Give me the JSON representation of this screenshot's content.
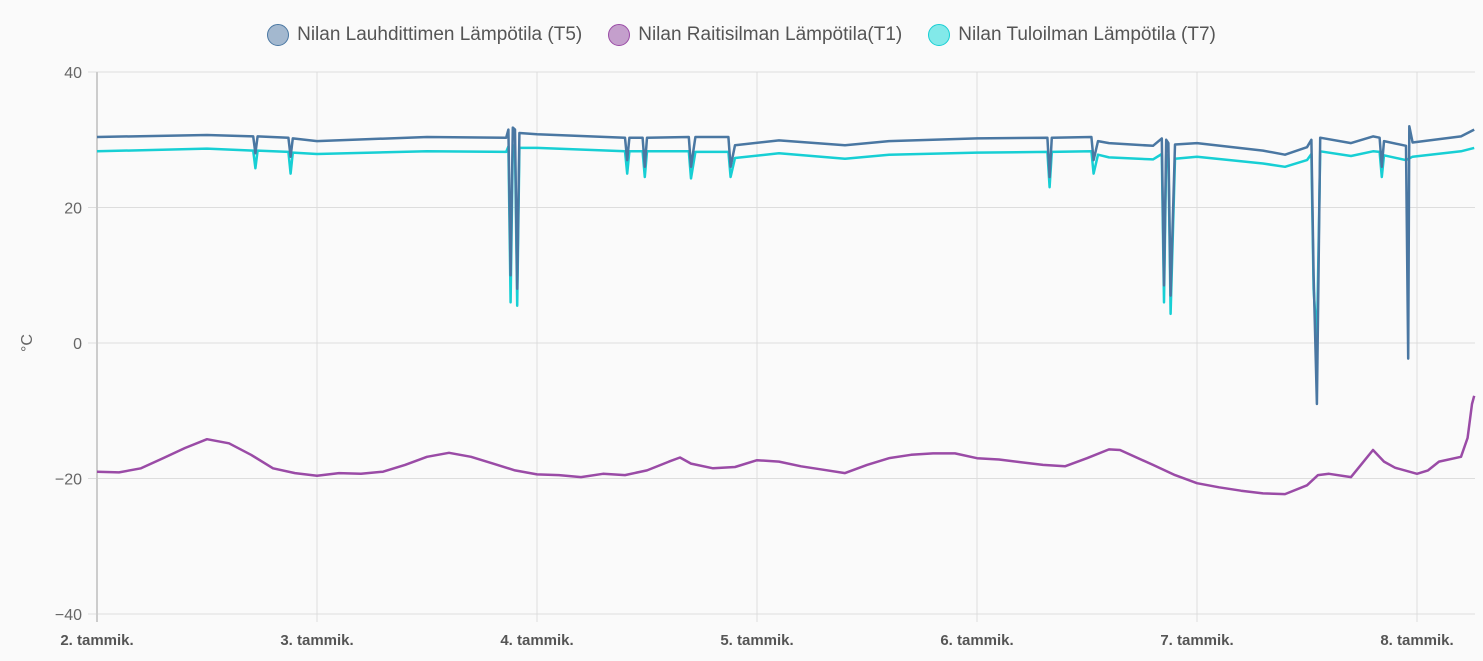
{
  "chart_data": {
    "type": "line",
    "title": "",
    "xlabel": "",
    "ylabel": "°C",
    "ylim": [
      -40,
      40
    ],
    "yticks": [
      "40",
      "20",
      "0",
      "−20",
      "−40"
    ],
    "ytick_values": [
      40,
      20,
      0,
      -20,
      -40
    ],
    "xlim": [
      2,
      8.26
    ],
    "xticks": [
      "2. tammik.",
      "3. tammik.",
      "4. tammik.",
      "5. tammik.",
      "6. tammik.",
      "7. tammik.",
      "8. tammik."
    ],
    "xtick_values": [
      2,
      3,
      4,
      5,
      6,
      7,
      8
    ],
    "x_unit": "day of January",
    "grid": true,
    "legend_position": "top",
    "series": [
      {
        "name": "Nilan Lauhdittimen Lämpötila (T5)",
        "color": "#4a77a2",
        "legend_fill": "#a3b8cf",
        "points": [
          [
            2.0,
            30.4
          ],
          [
            2.5,
            30.7
          ],
          [
            2.71,
            30.5
          ],
          [
            2.72,
            28
          ],
          [
            2.73,
            30.5
          ],
          [
            2.87,
            30.3
          ],
          [
            2.88,
            27.5
          ],
          [
            2.89,
            30.2
          ],
          [
            3.0,
            29.8
          ],
          [
            3.5,
            30.4
          ],
          [
            3.86,
            30.3
          ],
          [
            3.87,
            31.5
          ],
          [
            3.88,
            10
          ],
          [
            3.89,
            31.8
          ],
          [
            3.9,
            31.5
          ],
          [
            3.91,
            8
          ],
          [
            3.92,
            31
          ],
          [
            4.0,
            30.8
          ],
          [
            4.4,
            30.3
          ],
          [
            4.41,
            27
          ],
          [
            4.42,
            30.3
          ],
          [
            4.48,
            30.3
          ],
          [
            4.49,
            26
          ],
          [
            4.5,
            30.3
          ],
          [
            4.69,
            30.4
          ],
          [
            4.7,
            26
          ],
          [
            4.72,
            30.4
          ],
          [
            4.87,
            30.4
          ],
          [
            4.88,
            26
          ],
          [
            4.9,
            29.2
          ],
          [
            5.1,
            29.9
          ],
          [
            5.4,
            29.2
          ],
          [
            5.6,
            29.8
          ],
          [
            6.0,
            30.2
          ],
          [
            6.32,
            30.3
          ],
          [
            6.33,
            24.5
          ],
          [
            6.34,
            30.3
          ],
          [
            6.52,
            30.4
          ],
          [
            6.53,
            27
          ],
          [
            6.55,
            29.8
          ],
          [
            6.6,
            29.5
          ],
          [
            6.8,
            29.1
          ],
          [
            6.84,
            30.2
          ],
          [
            6.85,
            8.5
          ],
          [
            6.86,
            30
          ],
          [
            6.87,
            29.5
          ],
          [
            6.88,
            7
          ],
          [
            6.9,
            29.3
          ],
          [
            7.0,
            29.5
          ],
          [
            7.3,
            28.4
          ],
          [
            7.4,
            27.8
          ],
          [
            7.5,
            28.9
          ],
          [
            7.52,
            30
          ],
          [
            7.53,
            10
          ],
          [
            7.545,
            -9
          ],
          [
            7.56,
            30.3
          ],
          [
            7.7,
            29.5
          ],
          [
            7.8,
            30.5
          ],
          [
            7.83,
            30.3
          ],
          [
            7.84,
            26
          ],
          [
            7.85,
            29.8
          ],
          [
            7.95,
            29.1
          ],
          [
            7.96,
            -2.3
          ],
          [
            7.965,
            32
          ],
          [
            7.98,
            29.6
          ],
          [
            8.2,
            30.5
          ],
          [
            8.26,
            31.5
          ]
        ]
      },
      {
        "name": "Nilan Raitisilman Lämpötila(T1)",
        "color": "#9a4ba6",
        "legend_fill": "#c49fcc",
        "points": [
          [
            2.0,
            -19
          ],
          [
            2.1,
            -19.1
          ],
          [
            2.2,
            -18.5
          ],
          [
            2.3,
            -17
          ],
          [
            2.4,
            -15.5
          ],
          [
            2.5,
            -14.2
          ],
          [
            2.6,
            -14.8
          ],
          [
            2.7,
            -16.5
          ],
          [
            2.8,
            -18.5
          ],
          [
            2.9,
            -19.2
          ],
          [
            3.0,
            -19.6
          ],
          [
            3.1,
            -19.2
          ],
          [
            3.2,
            -19.3
          ],
          [
            3.3,
            -19
          ],
          [
            3.4,
            -18
          ],
          [
            3.5,
            -16.8
          ],
          [
            3.6,
            -16.2
          ],
          [
            3.7,
            -16.8
          ],
          [
            3.8,
            -17.8
          ],
          [
            3.9,
            -18.8
          ],
          [
            4.0,
            -19.4
          ],
          [
            4.1,
            -19.5
          ],
          [
            4.2,
            -19.8
          ],
          [
            4.3,
            -19.3
          ],
          [
            4.4,
            -19.5
          ],
          [
            4.5,
            -18.8
          ],
          [
            4.6,
            -17.5
          ],
          [
            4.65,
            -16.9
          ],
          [
            4.7,
            -17.8
          ],
          [
            4.8,
            -18.5
          ],
          [
            4.9,
            -18.3
          ],
          [
            5.0,
            -17.3
          ],
          [
            5.1,
            -17.5
          ],
          [
            5.2,
            -18.2
          ],
          [
            5.3,
            -18.7
          ],
          [
            5.4,
            -19.2
          ],
          [
            5.5,
            -18
          ],
          [
            5.6,
            -17
          ],
          [
            5.7,
            -16.5
          ],
          [
            5.8,
            -16.3
          ],
          [
            5.9,
            -16.3
          ],
          [
            6.0,
            -17
          ],
          [
            6.1,
            -17.2
          ],
          [
            6.2,
            -17.6
          ],
          [
            6.3,
            -18
          ],
          [
            6.4,
            -18.2
          ],
          [
            6.5,
            -17
          ],
          [
            6.6,
            -15.7
          ],
          [
            6.65,
            -15.8
          ],
          [
            6.8,
            -18
          ],
          [
            6.9,
            -19.5
          ],
          [
            7.0,
            -20.7
          ],
          [
            7.1,
            -21.3
          ],
          [
            7.2,
            -21.8
          ],
          [
            7.3,
            -22.2
          ],
          [
            7.4,
            -22.3
          ],
          [
            7.5,
            -21
          ],
          [
            7.55,
            -19.5
          ],
          [
            7.6,
            -19.3
          ],
          [
            7.7,
            -19.8
          ],
          [
            7.75,
            -17.8
          ],
          [
            7.8,
            -15.8
          ],
          [
            7.85,
            -17.5
          ],
          [
            7.9,
            -18.4
          ],
          [
            8.0,
            -19.3
          ],
          [
            8.05,
            -18.8
          ],
          [
            8.1,
            -17.5
          ],
          [
            8.2,
            -16.8
          ],
          [
            8.23,
            -14
          ],
          [
            8.25,
            -9
          ],
          [
            8.26,
            -7.8
          ]
        ]
      },
      {
        "name": "Nilan Tuloilman Lämpötila (T7)",
        "color": "#17cfd4",
        "legend_fill": "#82e9e9",
        "points": [
          [
            2.0,
            28.3
          ],
          [
            2.5,
            28.7
          ],
          [
            2.71,
            28.4
          ],
          [
            2.72,
            25.8
          ],
          [
            2.73,
            28.4
          ],
          [
            2.87,
            28.2
          ],
          [
            2.88,
            25
          ],
          [
            2.89,
            28.1
          ],
          [
            3.0,
            27.9
          ],
          [
            3.5,
            28.3
          ],
          [
            3.86,
            28.2
          ],
          [
            3.87,
            29
          ],
          [
            3.88,
            6
          ],
          [
            3.89,
            29.2
          ],
          [
            3.9,
            29
          ],
          [
            3.91,
            5.5
          ],
          [
            3.92,
            28.8
          ],
          [
            4.0,
            28.8
          ],
          [
            4.4,
            28.3
          ],
          [
            4.41,
            25
          ],
          [
            4.42,
            28.3
          ],
          [
            4.48,
            28.3
          ],
          [
            4.49,
            24.5
          ],
          [
            4.5,
            28.3
          ],
          [
            4.69,
            28.3
          ],
          [
            4.7,
            24.3
          ],
          [
            4.72,
            28.2
          ],
          [
            4.87,
            28.2
          ],
          [
            4.88,
            24.5
          ],
          [
            4.9,
            27.3
          ],
          [
            5.1,
            28
          ],
          [
            5.4,
            27.2
          ],
          [
            5.6,
            27.8
          ],
          [
            6.0,
            28.1
          ],
          [
            6.32,
            28.2
          ],
          [
            6.33,
            23
          ],
          [
            6.34,
            28.2
          ],
          [
            6.52,
            28.3
          ],
          [
            6.53,
            25
          ],
          [
            6.55,
            27.8
          ],
          [
            6.6,
            27.4
          ],
          [
            6.8,
            27.1
          ],
          [
            6.84,
            27.9
          ],
          [
            6.85,
            6
          ],
          [
            6.86,
            27.8
          ],
          [
            6.87,
            27.3
          ],
          [
            6.88,
            4.3
          ],
          [
            6.9,
            27.2
          ],
          [
            7.0,
            27.5
          ],
          [
            7.3,
            26.5
          ],
          [
            7.4,
            26
          ],
          [
            7.5,
            27
          ],
          [
            7.52,
            27.9
          ],
          [
            7.53,
            8
          ],
          [
            7.545,
            0
          ],
          [
            7.56,
            28.3
          ],
          [
            7.7,
            27.6
          ],
          [
            7.8,
            28.3
          ],
          [
            7.83,
            28.2
          ],
          [
            7.84,
            24.5
          ],
          [
            7.85,
            27.7
          ],
          [
            7.95,
            27
          ],
          [
            7.98,
            27.5
          ],
          [
            8.2,
            28.3
          ],
          [
            8.26,
            28.8
          ]
        ]
      }
    ]
  }
}
